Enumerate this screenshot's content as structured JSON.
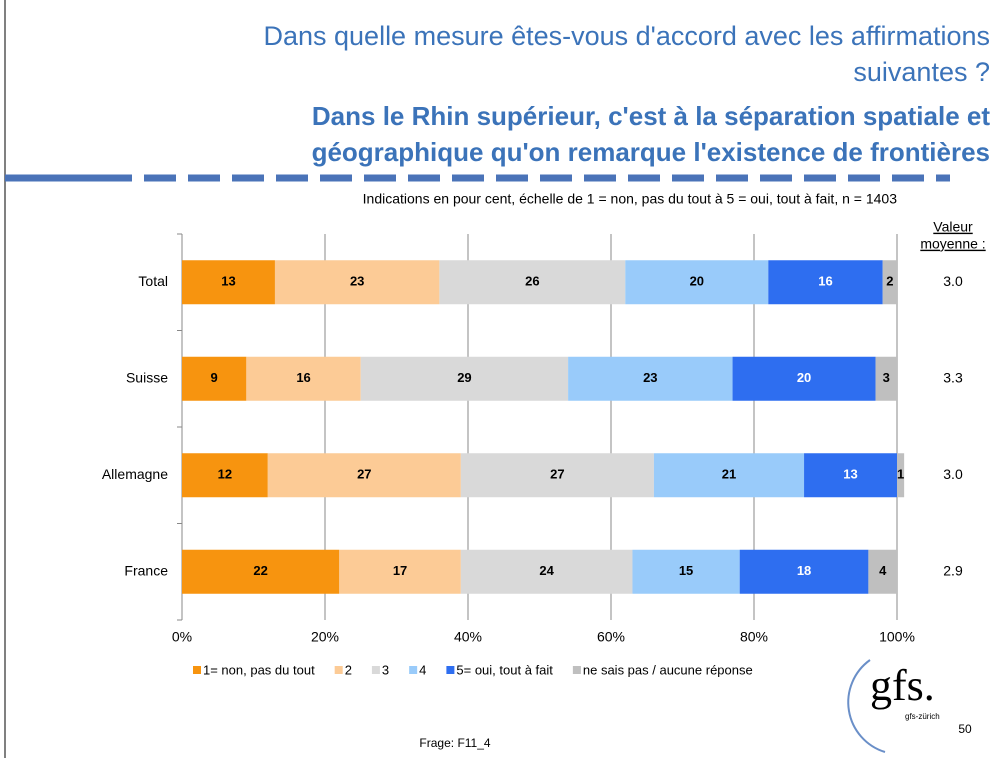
{
  "chart_data": {
    "type": "stacked-barh",
    "title": [
      "Dans quelle mesure êtes-vous d'accord avec les affirmations",
      "suivantes ?"
    ],
    "statement": [
      "Dans le Rhin supérieur, c'est à la séparation spatiale et",
      "géographique qu'on remarque l'existence de frontières"
    ],
    "subtitle": "Indications en pour cent, échelle de 1 = non, pas du tout à 5 = oui, tout à fait, n = 1403",
    "categories": [
      "Total",
      "Suisse",
      "Allemagne",
      "France"
    ],
    "series": [
      {
        "name": "1= non, pas du tout",
        "color": "#f7940f",
        "values": [
          13,
          9,
          12,
          22
        ]
      },
      {
        "name": "2",
        "color": "#fccb96",
        "values": [
          23,
          16,
          27,
          17
        ]
      },
      {
        "name": "3",
        "color": "#d9d9d9",
        "values": [
          26,
          29,
          27,
          24
        ]
      },
      {
        "name": "4",
        "color": "#99cbfa",
        "values": [
          20,
          23,
          21,
          15
        ]
      },
      {
        "name": "5= oui, tout à fait",
        "color": "#2e6ef0",
        "values": [
          16,
          20,
          13,
          18
        ]
      },
      {
        "name": "ne sais pas / aucune réponse",
        "color": "#bfbfbf",
        "values": [
          2,
          3,
          1,
          4
        ]
      }
    ],
    "means": {
      "label": [
        "Valeur",
        "moyenne :"
      ],
      "values": [
        3,
        3.3,
        3,
        2.9
      ],
      "value_labels": [
        "3.0",
        "3.3",
        "3.0",
        "2.9"
      ]
    },
    "xlim": [
      0,
      100
    ],
    "xticks": [
      {
        "value": 0,
        "label": "0%"
      },
      {
        "value": 20,
        "label": "20%"
      },
      {
        "value": 40,
        "label": "40%"
      },
      {
        "value": 60,
        "label": "60%"
      },
      {
        "value": 80,
        "label": "80%"
      },
      {
        "value": 100,
        "label": "100%"
      }
    ],
    "grid": true
  },
  "footer": "Frage: F11_4",
  "page_number": "50",
  "logo": {
    "text": "gfs.",
    "subtext": "gfs-zürich"
  }
}
